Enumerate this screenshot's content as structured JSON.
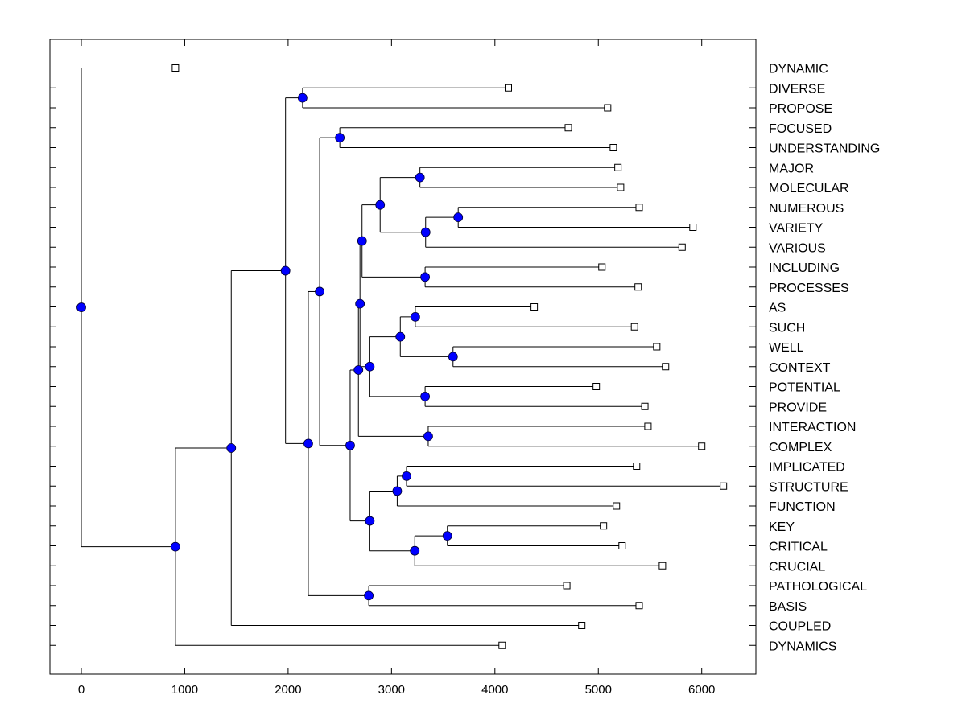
{
  "chart_data": {
    "type": "dendrogram",
    "title": "",
    "xlabel": "",
    "ylabel": "",
    "xlim": [
      -300,
      6520
    ],
    "xticks": [
      0,
      1000,
      2000,
      3000,
      4000,
      5000,
      6000
    ],
    "xtick_labels": [
      "0",
      "1000",
      "2000",
      "3000",
      "4000",
      "5000",
      "6000"
    ],
    "grid": false,
    "node_color": "#0000ff",
    "leaf_marker": "open-square",
    "leaves": [
      {
        "label": "DYNAMIC",
        "value": 910
      },
      {
        "label": "DIVERSE",
        "value": 4130
      },
      {
        "label": "PROPOSE",
        "value": 5090
      },
      {
        "label": "FOCUSED",
        "value": 4710
      },
      {
        "label": "UNDERSTANDING",
        "value": 5145
      },
      {
        "label": "MAJOR",
        "value": 5190
      },
      {
        "label": "MOLECULAR",
        "value": 5215
      },
      {
        "label": "NUMEROUS",
        "value": 5395
      },
      {
        "label": "VARIETY",
        "value": 5915
      },
      {
        "label": "VARIOUS",
        "value": 5810
      },
      {
        "label": "INCLUDING",
        "value": 5035
      },
      {
        "label": "PROCESSES",
        "value": 5385
      },
      {
        "label": "AS",
        "value": 4380
      },
      {
        "label": "SUCH",
        "value": 5350
      },
      {
        "label": "WELL",
        "value": 5565
      },
      {
        "label": "CONTEXT",
        "value": 5650
      },
      {
        "label": "POTENTIAL",
        "value": 4980
      },
      {
        "label": "PROVIDE",
        "value": 5450
      },
      {
        "label": "INTERACTION",
        "value": 5480
      },
      {
        "label": "COMPLEX",
        "value": 6000
      },
      {
        "label": "IMPLICATED",
        "value": 5370
      },
      {
        "label": "STRUCTURE",
        "value": 6210
      },
      {
        "label": "FUNCTION",
        "value": 5175
      },
      {
        "label": "KEY",
        "value": 5050
      },
      {
        "label": "CRITICAL",
        "value": 5230
      },
      {
        "label": "CRUCIAL",
        "value": 5620
      },
      {
        "label": "PATHOLOGICAL",
        "value": 4695
      },
      {
        "label": "BASIS",
        "value": 5395
      },
      {
        "label": "COUPLED",
        "value": 4840
      },
      {
        "label": "DYNAMICS",
        "value": 4070
      }
    ],
    "merges": [
      {
        "id": "n_div_prop",
        "value": 2140,
        "children": [
          "L1",
          "L2"
        ]
      },
      {
        "id": "n_foc_und",
        "value": 2500,
        "children": [
          "L3",
          "L4"
        ]
      },
      {
        "id": "n_maj_mol",
        "value": 3275,
        "children": [
          "L5",
          "L6"
        ]
      },
      {
        "id": "n_num_var",
        "value": 3645,
        "children": [
          "L7",
          "L8"
        ]
      },
      {
        "id": "n_nv_various",
        "value": 3330,
        "children": [
          "n_num_var",
          "L9"
        ]
      },
      {
        "id": "n_mm_nvv",
        "value": 2890,
        "children": [
          "n_maj_mol",
          "n_nv_various"
        ]
      },
      {
        "id": "n_inc_proc",
        "value": 3325,
        "children": [
          "L10",
          "L11"
        ]
      },
      {
        "id": "n_A",
        "value": 2715,
        "children": [
          "n_mm_nvv",
          "n_inc_proc"
        ]
      },
      {
        "id": "n_as_such",
        "value": 3230,
        "children": [
          "L12",
          "L13"
        ]
      },
      {
        "id": "n_well_ctx",
        "value": 3595,
        "children": [
          "L14",
          "L15"
        ]
      },
      {
        "id": "n_as_well",
        "value": 3085,
        "children": [
          "n_as_such",
          "n_well_ctx"
        ]
      },
      {
        "id": "n_pot_prov",
        "value": 3325,
        "children": [
          "L16",
          "L17"
        ]
      },
      {
        "id": "n_D",
        "value": 2790,
        "children": [
          "n_as_well",
          "n_pot_prov"
        ]
      },
      {
        "id": "n_B",
        "value": 2695,
        "children": [
          "n_A",
          "n_D"
        ]
      },
      {
        "id": "n_int_cpx",
        "value": 3355,
        "children": [
          "L18",
          "L19"
        ]
      },
      {
        "id": "n_C",
        "value": 2680,
        "children": [
          "n_B",
          "n_int_cpx"
        ]
      },
      {
        "id": "n_imp_str",
        "value": 3145,
        "children": [
          "L20",
          "L21"
        ]
      },
      {
        "id": "n_is_func",
        "value": 3055,
        "children": [
          "n_imp_str",
          "L22"
        ]
      },
      {
        "id": "n_key_crit",
        "value": 3540,
        "children": [
          "L23",
          "L24"
        ]
      },
      {
        "id": "n_kc_cruc",
        "value": 3225,
        "children": [
          "n_key_crit",
          "L25"
        ]
      },
      {
        "id": "n_E",
        "value": 2790,
        "children": [
          "n_is_func",
          "n_kc_cruc"
        ]
      },
      {
        "id": "n_F",
        "value": 2600,
        "children": [
          "n_C",
          "n_E"
        ]
      },
      {
        "id": "n_G",
        "value": 2305,
        "children": [
          "n_foc_und",
          "n_F"
        ]
      },
      {
        "id": "n_path_basis",
        "value": 2780,
        "children": [
          "L26",
          "L27"
        ]
      },
      {
        "id": "n_H",
        "value": 2195,
        "children": [
          "n_G",
          "n_path_basis"
        ]
      },
      {
        "id": "n_I",
        "value": 1975,
        "children": [
          "n_div_prop",
          "n_H"
        ]
      },
      {
        "id": "n_J",
        "value": 1450,
        "children": [
          "n_I",
          "L28"
        ]
      },
      {
        "id": "n_K",
        "value": 910,
        "children": [
          "n_J",
          "L29"
        ]
      },
      {
        "id": "n_root",
        "value": 0,
        "children": [
          "L0",
          "n_K"
        ]
      }
    ]
  }
}
